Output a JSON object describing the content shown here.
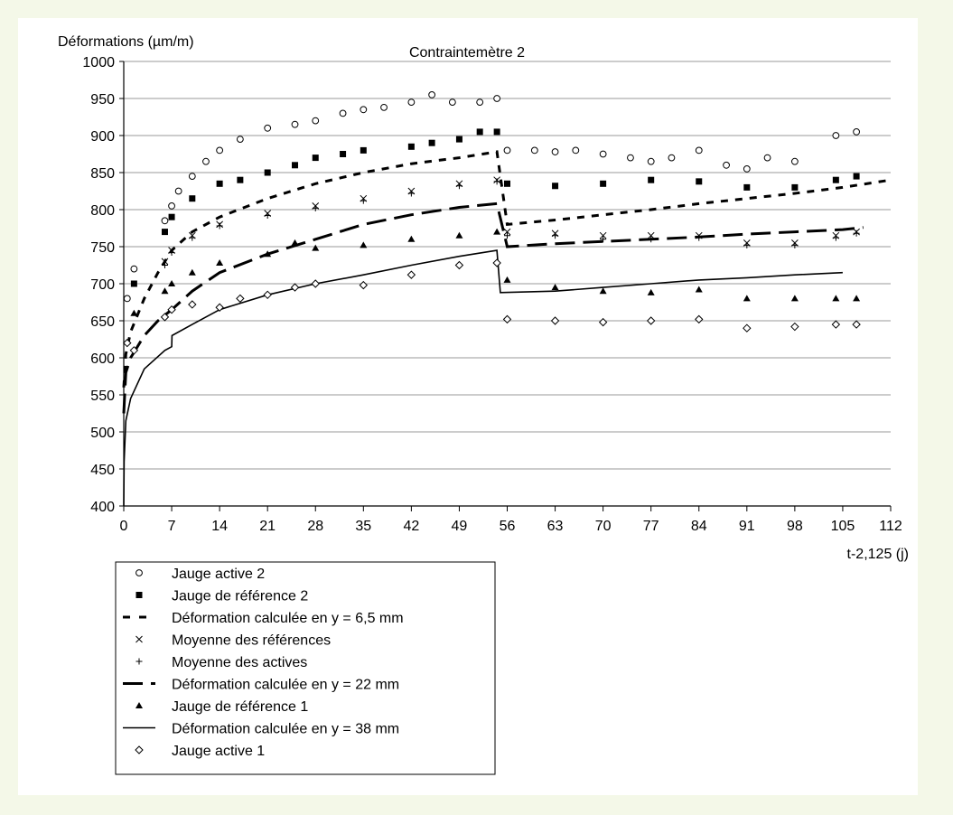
{
  "chart_data": {
    "type": "scatter",
    "title": "Contraintemètre 2",
    "ylabel": "Déformations (µm/m)",
    "xlabel": "t-2,125 (j)",
    "xlim": [
      0,
      112
    ],
    "ylim": [
      400,
      1000
    ],
    "x_ticks": [
      0,
      7,
      14,
      21,
      28,
      35,
      42,
      49,
      56,
      63,
      70,
      77,
      84,
      91,
      98,
      105,
      112
    ],
    "y_ticks": [
      400,
      450,
      500,
      550,
      600,
      650,
      700,
      750,
      800,
      850,
      900,
      950,
      1000
    ],
    "grid": "horizontal",
    "legend_position": "bottom-left",
    "series": [
      {
        "name": "Jauge active 2",
        "marker": "circle-open",
        "points": [
          [
            0.5,
            680
          ],
          [
            1.5,
            720
          ],
          [
            6,
            785
          ],
          [
            7,
            805
          ],
          [
            8,
            825
          ],
          [
            10,
            845
          ],
          [
            12,
            865
          ],
          [
            14,
            880
          ],
          [
            17,
            895
          ],
          [
            21,
            910
          ],
          [
            25,
            915
          ],
          [
            28,
            920
          ],
          [
            32,
            930
          ],
          [
            35,
            935
          ],
          [
            38,
            938
          ],
          [
            42,
            945
          ],
          [
            45,
            955
          ],
          [
            48,
            945
          ],
          [
            52,
            945
          ],
          [
            54.5,
            950
          ],
          [
            56,
            880
          ],
          [
            60,
            880
          ],
          [
            63,
            878
          ],
          [
            66,
            880
          ],
          [
            70,
            875
          ],
          [
            74,
            870
          ],
          [
            77,
            865
          ],
          [
            80,
            870
          ],
          [
            84,
            880
          ],
          [
            88,
            860
          ],
          [
            91,
            855
          ],
          [
            94,
            870
          ],
          [
            98,
            865
          ],
          [
            104,
            900
          ],
          [
            107,
            905
          ]
        ]
      },
      {
        "name": "Jauge de référence 2",
        "marker": "square-filled",
        "points": [
          [
            1.5,
            700
          ],
          [
            6,
            770
          ],
          [
            7,
            790
          ],
          [
            10,
            815
          ],
          [
            14,
            835
          ],
          [
            17,
            840
          ],
          [
            21,
            850
          ],
          [
            25,
            860
          ],
          [
            28,
            870
          ],
          [
            32,
            875
          ],
          [
            35,
            880
          ],
          [
            42,
            885
          ],
          [
            45,
            890
          ],
          [
            49,
            895
          ],
          [
            52,
            905
          ],
          [
            54.5,
            905
          ],
          [
            56,
            835
          ],
          [
            63,
            832
          ],
          [
            70,
            835
          ],
          [
            77,
            840
          ],
          [
            84,
            838
          ],
          [
            91,
            830
          ],
          [
            98,
            830
          ],
          [
            104,
            840
          ],
          [
            107,
            845
          ]
        ]
      },
      {
        "name": "Déformation calculée en y = 6,5 mm",
        "style": "short-dash",
        "points": [
          [
            0,
            560
          ],
          [
            0.3,
            605
          ],
          [
            1,
            635
          ],
          [
            3,
            680
          ],
          [
            5,
            715
          ],
          [
            7,
            745
          ],
          [
            10,
            770
          ],
          [
            14,
            790
          ],
          [
            21,
            815
          ],
          [
            28,
            835
          ],
          [
            35,
            850
          ],
          [
            42,
            862
          ],
          [
            49,
            870
          ],
          [
            54.5,
            878
          ],
          [
            56,
            780
          ],
          [
            63,
            786
          ],
          [
            70,
            793
          ],
          [
            77,
            800
          ],
          [
            84,
            808
          ],
          [
            91,
            815
          ],
          [
            98,
            822
          ],
          [
            105,
            830
          ],
          [
            112,
            840
          ]
        ]
      },
      {
        "name": "Moyenne des références",
        "marker": "x",
        "points": [
          [
            6,
            730
          ],
          [
            7,
            745
          ],
          [
            10,
            765
          ],
          [
            14,
            780
          ],
          [
            21,
            795
          ],
          [
            28,
            805
          ],
          [
            35,
            815
          ],
          [
            42,
            825
          ],
          [
            49,
            835
          ],
          [
            54.5,
            840
          ],
          [
            56,
            770
          ],
          [
            63,
            768
          ],
          [
            70,
            765
          ],
          [
            77,
            765
          ],
          [
            84,
            765
          ],
          [
            91,
            755
          ],
          [
            98,
            755
          ],
          [
            104,
            765
          ],
          [
            107,
            770
          ]
        ]
      },
      {
        "name": "Moyenne des actives",
        "marker": "plus",
        "points": [
          [
            6,
            725
          ],
          [
            7,
            742
          ],
          [
            10,
            762
          ],
          [
            14,
            778
          ],
          [
            21,
            792
          ],
          [
            28,
            802
          ],
          [
            35,
            812
          ],
          [
            42,
            822
          ],
          [
            49,
            832
          ],
          [
            54.5,
            838
          ],
          [
            56,
            765
          ],
          [
            63,
            765
          ],
          [
            70,
            760
          ],
          [
            77,
            760
          ],
          [
            84,
            762
          ],
          [
            91,
            752
          ],
          [
            98,
            752
          ],
          [
            104,
            762
          ],
          [
            107,
            768
          ]
        ]
      },
      {
        "name": "Déformation calculée en y = 22 mm",
        "style": "long-dash",
        "points": [
          [
            0,
            525
          ],
          [
            0.3,
            580
          ],
          [
            1,
            600
          ],
          [
            3,
            630
          ],
          [
            5,
            650
          ],
          [
            7,
            665
          ],
          [
            10,
            690
          ],
          [
            14,
            715
          ],
          [
            21,
            740
          ],
          [
            28,
            760
          ],
          [
            35,
            780
          ],
          [
            42,
            793
          ],
          [
            49,
            803
          ],
          [
            54.5,
            808
          ],
          [
            56,
            750
          ],
          [
            63,
            754
          ],
          [
            70,
            757
          ],
          [
            77,
            760
          ],
          [
            84,
            763
          ],
          [
            91,
            767
          ],
          [
            98,
            770
          ],
          [
            105,
            773
          ],
          [
            108,
            776
          ]
        ]
      },
      {
        "name": "Jauge de référence 1",
        "marker": "triangle-filled",
        "points": [
          [
            1.5,
            660
          ],
          [
            6,
            690
          ],
          [
            7,
            700
          ],
          [
            10,
            715
          ],
          [
            14,
            728
          ],
          [
            21,
            740
          ],
          [
            25,
            755
          ],
          [
            28,
            748
          ],
          [
            35,
            752
          ],
          [
            42,
            760
          ],
          [
            49,
            765
          ],
          [
            54.5,
            770
          ],
          [
            56,
            705
          ],
          [
            63,
            695
          ],
          [
            70,
            690
          ],
          [
            77,
            688
          ],
          [
            84,
            692
          ],
          [
            91,
            680
          ],
          [
            98,
            680
          ],
          [
            104,
            680
          ],
          [
            107,
            680
          ]
        ]
      },
      {
        "name": "Déformation calculée en y = 38 mm",
        "style": "solid",
        "points": [
          [
            0,
            400
          ],
          [
            0.05,
            460
          ],
          [
            0.3,
            515
          ],
          [
            1,
            545
          ],
          [
            3,
            585
          ],
          [
            6,
            610
          ],
          [
            7,
            615
          ],
          [
            7.05,
            630
          ],
          [
            10,
            645
          ],
          [
            14,
            665
          ],
          [
            21,
            685
          ],
          [
            28,
            700
          ],
          [
            35,
            712
          ],
          [
            42,
            725
          ],
          [
            49,
            737
          ],
          [
            54.5,
            745
          ],
          [
            55,
            688
          ],
          [
            63,
            690
          ],
          [
            70,
            695
          ],
          [
            77,
            700
          ],
          [
            84,
            705
          ],
          [
            91,
            708
          ],
          [
            98,
            712
          ],
          [
            105,
            715
          ]
        ]
      },
      {
        "name": "Jauge active 1",
        "marker": "diamond-open",
        "points": [
          [
            0.5,
            620
          ],
          [
            1.5,
            610
          ],
          [
            6,
            655
          ],
          [
            7,
            665
          ],
          [
            10,
            672
          ],
          [
            14,
            668
          ],
          [
            17,
            680
          ],
          [
            21,
            685
          ],
          [
            25,
            695
          ],
          [
            28,
            700
          ],
          [
            35,
            698
          ],
          [
            42,
            712
          ],
          [
            49,
            725
          ],
          [
            54.5,
            728
          ],
          [
            56,
            652
          ],
          [
            63,
            650
          ],
          [
            70,
            648
          ],
          [
            77,
            650
          ],
          [
            84,
            652
          ],
          [
            91,
            640
          ],
          [
            98,
            642
          ],
          [
            104,
            645
          ],
          [
            107,
            645
          ]
        ]
      }
    ]
  }
}
